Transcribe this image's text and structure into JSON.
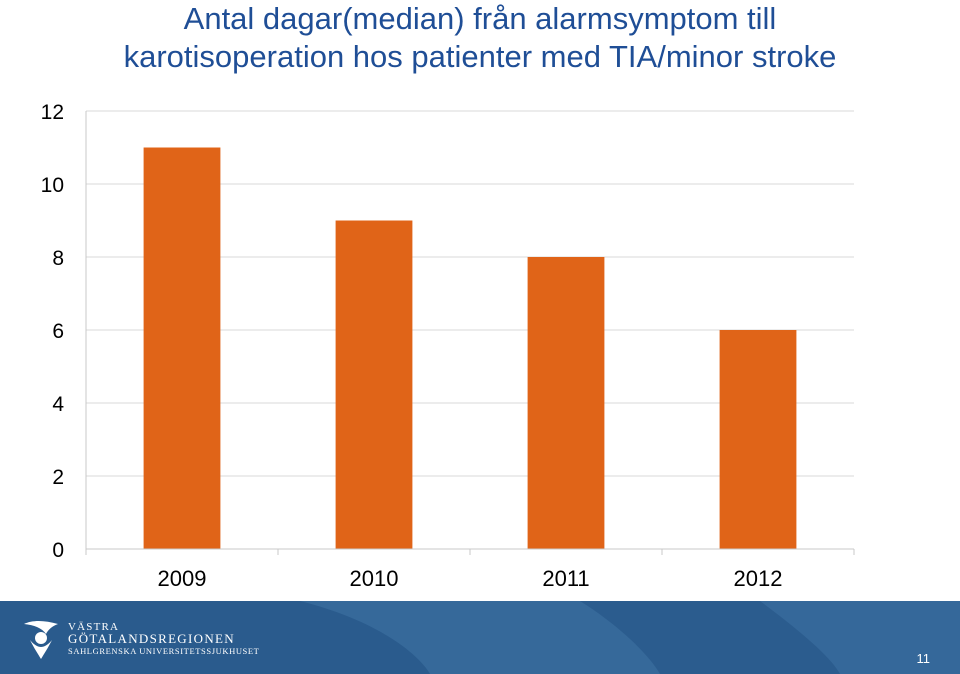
{
  "slide": {
    "title_line1": "Antal dagar(median) från alarmsymptom till",
    "title_line2": "karotisoperation hos patienter med TIA/minor stroke",
    "page_number": "11"
  },
  "footer": {
    "logo_line1": "VÄSTRA",
    "logo_line2": "GÖTALANDSREGIONEN",
    "logo_line3": "SAHLGRENSKA UNIVERSITETSSJUKHUSET",
    "logo_icon": "vgr-logo-icon",
    "background_color": "#2a5b8d"
  },
  "chart_data": {
    "type": "bar",
    "title": "Antal dagar(median) från alarmsymptom till karotisoperation hos patienter med TIA/minor stroke",
    "xlabel": "",
    "ylabel": "",
    "categories": [
      "2009",
      "2010",
      "2011",
      "2012"
    ],
    "series": [
      {
        "values": [
          11,
          9,
          8,
          6
        ],
        "color": "#e06418"
      }
    ],
    "ylim": [
      0,
      12
    ],
    "yticks": [
      0,
      2,
      4,
      6,
      8,
      10,
      12
    ],
    "ytick_labels": [
      "0",
      "2",
      "4",
      "6",
      "8",
      "10",
      "12"
    ],
    "grid": true,
    "legend": "none"
  }
}
